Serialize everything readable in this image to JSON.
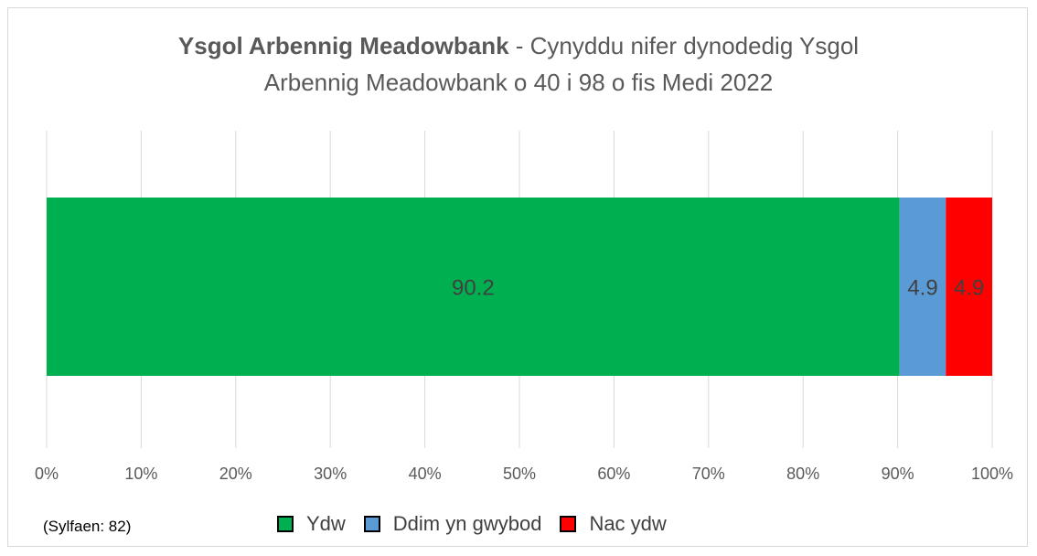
{
  "chart_data": {
    "type": "bar",
    "orientation": "horizontal",
    "stacked": true,
    "title_bold": "Ysgol Arbennig Meadowbank",
    "title_rest": " - Cynyddu nifer dynodedig Ysgol",
    "title_line2": "Arbennig Meadowbank o 40 i 98 o fis Medi 2022",
    "categories": [
      ""
    ],
    "series": [
      {
        "name": "Ydw",
        "values": [
          90.2
        ],
        "color": "#00b050"
      },
      {
        "name": "Ddim yn gwybod",
        "values": [
          4.9
        ],
        "color": "#5b9bd5"
      },
      {
        "name": "Nac ydw",
        "values": [
          4.9
        ],
        "color": "#ff0000"
      }
    ],
    "xlim": [
      0,
      100
    ],
    "x_ticks": [
      "0%",
      "10%",
      "20%",
      "30%",
      "40%",
      "50%",
      "60%",
      "70%",
      "80%",
      "90%",
      "100%"
    ],
    "grid": true,
    "legend_position": "bottom"
  },
  "footnote": "(Sylfaen: 82)"
}
